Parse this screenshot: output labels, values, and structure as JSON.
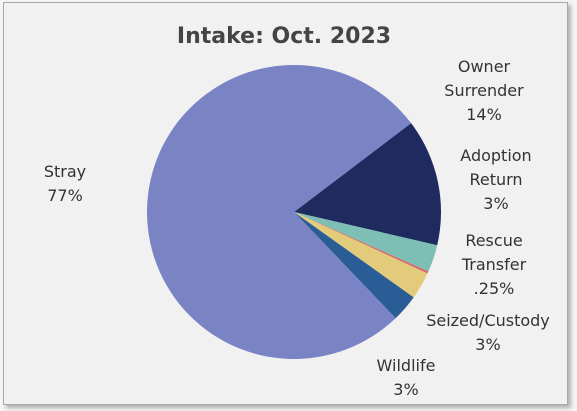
{
  "chart_data": {
    "type": "pie",
    "title": "Intake: Oct. 2023",
    "slices": [
      {
        "name": "Owner Surrender",
        "value": 14,
        "value_label": "14%",
        "label_lines": [
          "Owner",
          "Surrender"
        ],
        "color": "#1f2a5e"
      },
      {
        "name": "Adoption Return",
        "value": 3,
        "value_label": "3%",
        "label_lines": [
          "Adoption",
          "Return"
        ],
        "color": "#7dbfb4"
      },
      {
        "name": "Rescue Transfer",
        "value": 0.25,
        "value_label": ".25%",
        "label_lines": [
          "Rescue",
          "Transfer"
        ],
        "color": "#d96a6a"
      },
      {
        "name": "Seized/Custody",
        "value": 3,
        "value_label": "3%",
        "label_lines": [
          "Seized/Custody"
        ],
        "color": "#e2cc7c"
      },
      {
        "name": "Wildlife",
        "value": 3,
        "value_label": "3%",
        "label_lines": [
          "Wildlife"
        ],
        "color": "#2a5d96"
      },
      {
        "name": "Stray",
        "value": 77,
        "value_label": "77%",
        "label_lines": [
          "Stray"
        ],
        "color": "#7a84c4"
      }
    ],
    "legend": "none",
    "start_angle_deg": 52.8,
    "direction": "clockwise"
  }
}
